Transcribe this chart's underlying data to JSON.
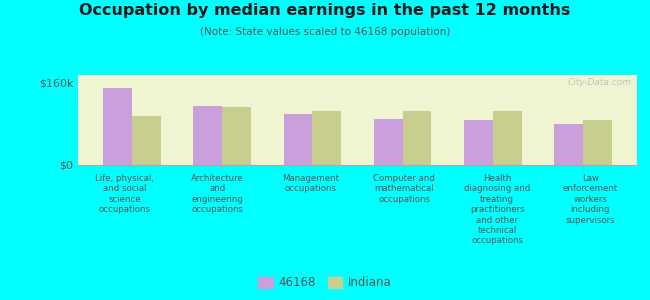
{
  "title": "Occupation by median earnings in the past 12 months",
  "subtitle": "(Note: State values scaled to 46168 population)",
  "categories": [
    "Life, physical,\nand social\nscience\noccupations",
    "Architecture\nand\nengineering\noccupations",
    "Management\noccupations",
    "Computer and\nmathematical\noccupations",
    "Health\ndiagnosing and\ntreating\npractitioners\nand other\ntechnical\noccupations",
    "Law\nenforcement\nworkers\nincluding\nsupervisors"
  ],
  "values_46168": [
    150000,
    115000,
    100000,
    90000,
    88000,
    80000
  ],
  "values_indiana": [
    95000,
    112000,
    105000,
    105000,
    105000,
    88000
  ],
  "color_46168": "#c9a0dc",
  "color_indiana": "#c8cf8e",
  "yticks": [
    0,
    160000
  ],
  "ytick_labels": [
    "$0",
    "$160k"
  ],
  "ylim": [
    0,
    175000
  ],
  "background_color": "#eef5d0",
  "outer_background": "#00ffff",
  "legend_label_46168": "46168",
  "legend_label_indiana": "Indiana",
  "watermark": "City-Data.com"
}
